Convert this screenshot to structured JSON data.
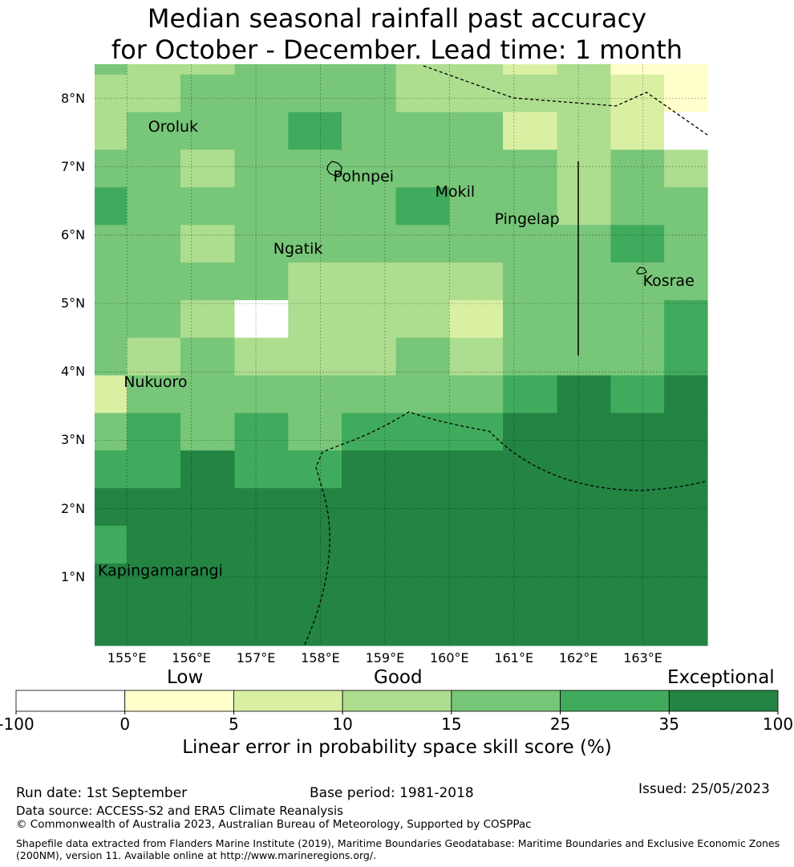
{
  "title": {
    "line1": "Median seasonal rainfall past accuracy",
    "line2": "for October - December. Lead time: 1 month"
  },
  "map": {
    "lon_range": [
      154.5,
      164.0
    ],
    "lat_range": [
      0.0,
      8.5
    ],
    "lat_ticks": [
      {
        "value": 8,
        "label": "8°N"
      },
      {
        "value": 7,
        "label": "7°N"
      },
      {
        "value": 6,
        "label": "6°N"
      },
      {
        "value": 5,
        "label": "5°N"
      },
      {
        "value": 4,
        "label": "4°N"
      },
      {
        "value": 3,
        "label": "3°N"
      },
      {
        "value": 2,
        "label": "2°N"
      },
      {
        "value": 1,
        "label": "1°N"
      }
    ],
    "lon_ticks": [
      {
        "value": 155,
        "label": "155°E"
      },
      {
        "value": 156,
        "label": "156°E"
      },
      {
        "value": 157,
        "label": "157°E"
      },
      {
        "value": 158,
        "label": "158°E"
      },
      {
        "value": 159,
        "label": "159°E"
      },
      {
        "value": 160,
        "label": "160°E"
      },
      {
        "value": 161,
        "label": "161°E"
      },
      {
        "value": 162,
        "label": "162°E"
      },
      {
        "value": 163,
        "label": "163°E"
      }
    ],
    "places": [
      {
        "name": "Oroluk",
        "lon": 155.33,
        "lat": 7.57
      },
      {
        "name": "Pohnpei",
        "lon": 158.2,
        "lat": 6.85
      },
      {
        "name": "Mokil",
        "lon": 159.78,
        "lat": 6.62
      },
      {
        "name": "Pingelap",
        "lon": 160.7,
        "lat": 6.22
      },
      {
        "name": "Ngatik",
        "lon": 157.27,
        "lat": 5.79
      },
      {
        "name": "Kosrae",
        "lon": 163.0,
        "lat": 5.32
      },
      {
        "name": "Nukuoro",
        "lon": 154.95,
        "lat": 3.84
      },
      {
        "name": "Kapingamarangi",
        "lon": 154.55,
        "lat": 1.08
      }
    ],
    "col_lons": [
      154.5,
      155.0,
      155.83,
      156.67,
      157.5,
      158.33,
      159.17,
      160.0,
      160.83,
      161.67,
      162.5,
      163.33,
      164.0
    ],
    "row_lats": [
      8.5,
      8.35,
      7.8,
      7.25,
      6.7,
      6.15,
      5.6,
      5.05,
      4.5,
      3.95,
      3.4,
      2.85,
      2.3,
      1.75,
      1.2,
      0.0
    ],
    "grid_classes": [
      [
        4,
        3,
        3,
        4,
        4,
        4,
        3,
        3,
        2,
        3,
        1,
        1
      ],
      [
        3,
        3,
        4,
        4,
        4,
        4,
        3,
        3,
        3,
        3,
        2,
        1
      ],
      [
        3,
        4,
        4,
        4,
        5,
        4,
        4,
        4,
        2,
        3,
        2,
        0
      ],
      [
        4,
        4,
        3,
        4,
        4,
        4,
        4,
        4,
        4,
        3,
        4,
        3
      ],
      [
        5,
        4,
        4,
        4,
        4,
        4,
        5,
        4,
        4,
        3,
        4,
        4
      ],
      [
        4,
        4,
        3,
        4,
        4,
        4,
        4,
        4,
        4,
        4,
        5,
        4
      ],
      [
        4,
        4,
        4,
        4,
        3,
        3,
        3,
        3,
        4,
        4,
        4,
        4
      ],
      [
        4,
        4,
        3,
        0,
        3,
        3,
        3,
        2,
        4,
        4,
        4,
        5
      ],
      [
        4,
        3,
        4,
        3,
        3,
        3,
        4,
        3,
        4,
        4,
        4,
        5
      ],
      [
        2,
        4,
        4,
        4,
        4,
        4,
        4,
        4,
        5,
        6,
        5,
        6
      ],
      [
        4,
        5,
        4,
        5,
        4,
        5,
        5,
        5,
        6,
        6,
        6,
        6
      ],
      [
        5,
        5,
        6,
        5,
        5,
        6,
        6,
        6,
        6,
        6,
        6,
        6
      ],
      [
        6,
        6,
        6,
        6,
        6,
        6,
        6,
        6,
        6,
        6,
        6,
        6
      ],
      [
        5,
        6,
        6,
        6,
        6,
        6,
        6,
        6,
        6,
        6,
        6,
        6
      ],
      [
        6,
        6,
        6,
        6,
        6,
        6,
        6,
        6,
        6,
        6,
        6,
        6
      ]
    ]
  },
  "legend": {
    "categories": [
      {
        "label": "Low"
      },
      {
        "label": "Good"
      },
      {
        "label": "Exceptional"
      }
    ],
    "ticks": [
      "-100",
      "0",
      "5",
      "10",
      "15",
      "25",
      "35",
      "100"
    ],
    "colors": [
      "#ffffff",
      "#ffffcc",
      "#d9f0a3",
      "#addd8e",
      "#78c679",
      "#41ab5d",
      "#238443"
    ],
    "title": "Linear error in probability space skill score (%)"
  },
  "footer": {
    "run_date": "Run date: 1st September",
    "base_period": "Base period: 1981-2018",
    "issued": "Issued: 25/05/2023",
    "data_source": "Data source: ACCESS-S2 and ERA5 Climate Reanalysis",
    "copyright": "© Commonwealth of Australia 2023, Australian Bureau of Meteorology, Supported by COSPPac",
    "shapefile": "Shapefile data extracted from Flanders Marine Institute (2019), Maritime Boundaries Geodatabase: Maritime Boundaries and Exclusive Economic Zones (200NM), version 11. Available online at http://www.marineregions.org/."
  }
}
